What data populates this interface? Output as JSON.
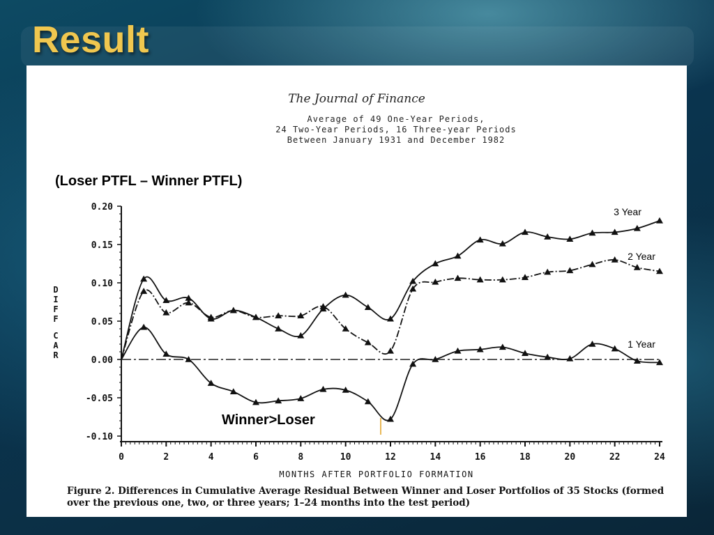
{
  "slide": {
    "title": "Result"
  },
  "figure": {
    "journal": "The Journal of Finance",
    "subtitle_lines": [
      "Average of 49 One-Year Periods,",
      "24 Two-Year Periods, 16 Three-year Periods",
      "Between January 1931 and December 1982"
    ],
    "annotation_top": "(Loser PTFL – Winner PTFL)",
    "annotation_winner_loser": "Winner>Loser",
    "caption_label": "Figure 2.",
    "caption_text": " Differences in Cumulative Average Residual Between Winner and Loser Portfolios of 35 Stocks (formed over the previous one, two, or three years; 1–24 months into the test period)"
  },
  "chart_data": {
    "type": "line",
    "xlabel": "MONTHS AFTER PORTFOLIO FORMATION",
    "ylabel": "DIFF CAR",
    "xlim": [
      0,
      24
    ],
    "ylim": [
      -0.1,
      0.2
    ],
    "x_ticks": [
      0,
      2,
      4,
      6,
      8,
      10,
      12,
      14,
      16,
      18,
      20,
      22,
      24
    ],
    "x_tick_labels": [
      "0",
      "2",
      "4",
      "6",
      "8",
      "10",
      "12",
      "14",
      "16",
      "18",
      "20",
      "22",
      "24"
    ],
    "y_ticks": [
      -0.1,
      -0.05,
      0.0,
      0.05,
      0.1,
      0.15,
      0.2
    ],
    "y_tick_labels": [
      "-0.10",
      "-0.05",
      "0.00",
      "0.05",
      "0.10",
      "0.15",
      "0.20"
    ],
    "x": [
      0,
      1,
      2,
      3,
      4,
      5,
      6,
      7,
      8,
      9,
      10,
      11,
      12,
      13,
      14,
      15,
      16,
      17,
      18,
      19,
      20,
      21,
      22,
      23,
      24
    ],
    "series": [
      {
        "name": "3 Year",
        "values": [
          0.0,
          0.105,
          0.077,
          0.08,
          0.053,
          0.064,
          0.055,
          0.04,
          0.031,
          0.066,
          0.084,
          0.068,
          0.053,
          0.102,
          0.125,
          0.135,
          0.156,
          0.151,
          0.166,
          0.16,
          0.157,
          0.165,
          0.166,
          0.171,
          0.181
        ]
      },
      {
        "name": "2 Year",
        "values": [
          0.0,
          0.089,
          0.061,
          0.074,
          0.055,
          0.064,
          0.055,
          0.057,
          0.057,
          0.069,
          0.04,
          0.022,
          0.011,
          0.092,
          0.101,
          0.106,
          0.104,
          0.104,
          0.107,
          0.114,
          0.116,
          0.124,
          0.13,
          0.12,
          0.115
        ]
      },
      {
        "name": "1 Year",
        "values": [
          0.0,
          0.042,
          0.007,
          0.0,
          -0.031,
          -0.042,
          -0.056,
          -0.054,
          -0.051,
          -0.039,
          -0.04,
          -0.055,
          -0.078,
          -0.006,
          0.0,
          0.011,
          0.013,
          0.016,
          0.008,
          0.003,
          0.001,
          0.02,
          0.014,
          -0.002,
          -0.004
        ]
      }
    ],
    "reference_line": 0.0,
    "grid": false,
    "legend": "inline labels at right end of each line"
  }
}
